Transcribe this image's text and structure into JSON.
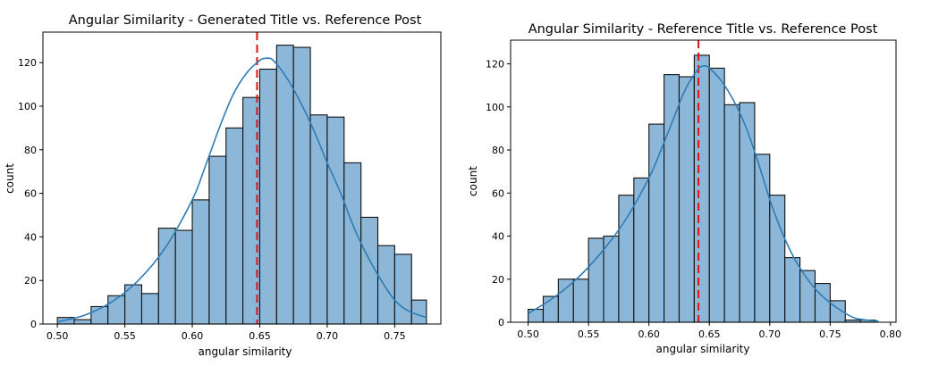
{
  "chart_data": [
    {
      "type": "bar",
      "subtype": "histogram-with-kde",
      "title": "Angular Similarity - Generated Title vs. Reference Post",
      "xlabel": "angular similarity",
      "ylabel": "count",
      "xlim": [
        0.4893,
        0.7842
      ],
      "ylim": [
        0,
        134
      ],
      "xticks": [
        0.5,
        0.55,
        0.6,
        0.65,
        0.7,
        0.75
      ],
      "xtick_labels": [
        "0.50",
        "0.55",
        "0.60",
        "0.65",
        "0.70",
        "0.75"
      ],
      "yticks": [
        0,
        20,
        40,
        60,
        80,
        100,
        120
      ],
      "ytick_labels": [
        "0",
        "20",
        "40",
        "60",
        "80",
        "100",
        "120"
      ],
      "bin_edges": [
        0.5,
        0.5125,
        0.525,
        0.5375,
        0.55,
        0.5625,
        0.575,
        0.5875,
        0.6,
        0.6125,
        0.625,
        0.6375,
        0.65,
        0.6625,
        0.675,
        0.6875,
        0.7,
        0.7125,
        0.725,
        0.7375,
        0.75,
        0.7625,
        0.7735
      ],
      "counts": [
        3,
        2,
        8,
        13,
        18,
        14,
        44,
        43,
        57,
        77,
        90,
        104,
        117,
        128,
        127,
        96,
        95,
        74,
        49,
        36,
        32,
        11
      ],
      "kde": {
        "x": [
          0.5,
          0.52,
          0.54,
          0.56,
          0.58,
          0.6,
          0.61,
          0.62,
          0.63,
          0.64,
          0.65,
          0.655,
          0.66,
          0.67,
          0.68,
          0.69,
          0.7,
          0.71,
          0.72,
          0.73,
          0.74,
          0.75,
          0.76,
          0.7735
        ],
        "y": [
          1,
          4,
          10,
          20,
          35,
          57,
          73,
          90,
          105,
          115,
          121,
          122,
          121,
          113,
          102,
          89,
          74,
          60,
          44,
          31,
          20,
          11,
          6,
          3
        ]
      },
      "mean_line": 0.648,
      "grid": false,
      "colors": {
        "bar_fill": "#8db7d8",
        "bar_edge": "#111111",
        "kde": "#2e7cb5",
        "mean_line": "#e01010"
      }
    },
    {
      "type": "bar",
      "subtype": "histogram-with-kde",
      "title": "Angular Similarity - Reference Title vs. Reference Post",
      "xlabel": "angular similarity",
      "ylabel": "count",
      "xlim": [
        0.4855,
        0.8045
      ],
      "ylim": [
        0,
        131
      ],
      "xticks": [
        0.5,
        0.55,
        0.6,
        0.65,
        0.7,
        0.75,
        0.8
      ],
      "xtick_labels": [
        "0.50",
        "0.55",
        "0.60",
        "0.65",
        "0.70",
        "0.75",
        "0.80"
      ],
      "yticks": [
        0,
        20,
        40,
        60,
        80,
        100,
        120
      ],
      "ytick_labels": [
        "0",
        "20",
        "40",
        "60",
        "80",
        "100",
        "120"
      ],
      "bin_edges": [
        0.5,
        0.5125,
        0.525,
        0.5375,
        0.55,
        0.5625,
        0.575,
        0.5875,
        0.6,
        0.6125,
        0.625,
        0.6375,
        0.65,
        0.6625,
        0.675,
        0.6875,
        0.7,
        0.7125,
        0.725,
        0.7375,
        0.75,
        0.7625,
        0.775,
        0.7875
      ],
      "counts": [
        6,
        12,
        20,
        20,
        39,
        40,
        59,
        67,
        92,
        115,
        114,
        124,
        118,
        101,
        102,
        78,
        59,
        30,
        24,
        18,
        10,
        1,
        1
      ],
      "kde": {
        "x": [
          0.5,
          0.52,
          0.54,
          0.56,
          0.58,
          0.6,
          0.61,
          0.62,
          0.63,
          0.64,
          0.645,
          0.65,
          0.66,
          0.67,
          0.68,
          0.69,
          0.7,
          0.71,
          0.72,
          0.73,
          0.74,
          0.75,
          0.76,
          0.77,
          0.78,
          0.79
        ],
        "y": [
          4,
          11,
          20,
          32,
          47,
          67,
          80,
          94,
          108,
          117,
          119,
          118,
          112,
          103,
          91,
          75,
          57,
          42,
          30,
          21,
          14,
          9,
          5,
          2,
          1,
          0.5
        ]
      },
      "mean_line": 0.641,
      "grid": false,
      "colors": {
        "bar_fill": "#8db7d8",
        "bar_edge": "#111111",
        "kde": "#2e7cb5",
        "mean_line": "#e01010"
      }
    }
  ]
}
